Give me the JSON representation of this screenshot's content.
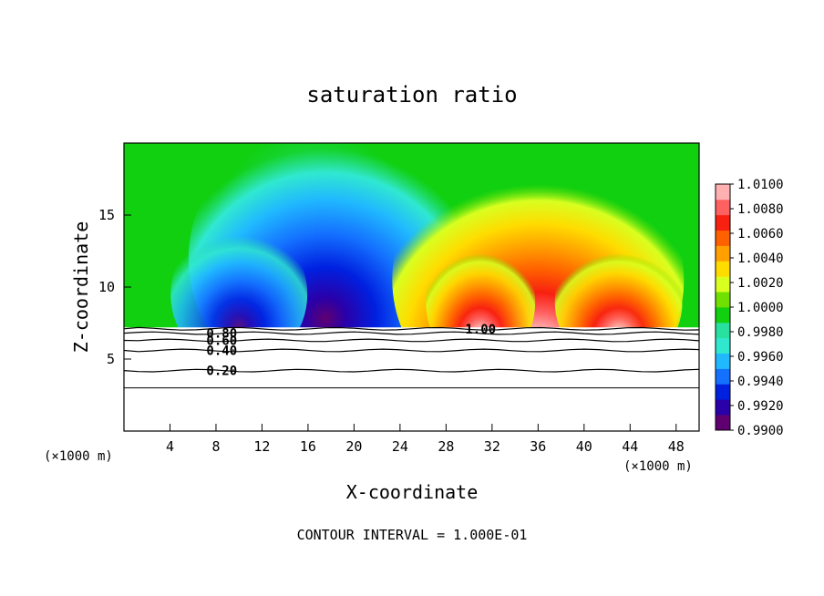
{
  "chart_data": {
    "type": "contour",
    "title": "saturation ratio",
    "xlabel": "X-coordinate",
    "ylabel": "Z-coordinate",
    "x_unit_label": "(×1000 m)",
    "xlim": [
      0,
      50
    ],
    "ylim": [
      0,
      20
    ],
    "x_ticks": [
      "4",
      "8",
      "12",
      "16",
      "20",
      "24",
      "28",
      "32",
      "36",
      "40",
      "44",
      "48"
    ],
    "y_ticks": [
      "5",
      "10",
      "15"
    ],
    "colorbar": {
      "min": 0.99,
      "max": 1.01,
      "labels": [
        "1.0100",
        "1.0080",
        "1.0060",
        "1.0040",
        "1.0020",
        "1.0000",
        "0.9980",
        "0.9960",
        "0.9940",
        "0.9920",
        "0.9900"
      ],
      "colors": [
        "#600070",
        "#2a00a8",
        "#0020e0",
        "#1470ff",
        "#20b8ff",
        "#30e8d0",
        "#28e0a0",
        "#10d010",
        "#70e000",
        "#d8ff20",
        "#ffdc00",
        "#ffa000",
        "#ff6000",
        "#f82010",
        "#ff6060",
        "#ffb0b0"
      ]
    },
    "contour_lines": [
      {
        "value": 0.2,
        "z": 4.2
      },
      {
        "value": 0.4,
        "z": 5.6
      },
      {
        "value": 0.6,
        "z": 6.3
      },
      {
        "value": 0.8,
        "z": 6.8
      },
      {
        "value": 1.0,
        "z": 7.1
      }
    ],
    "contour_labels": [
      "0.20",
      "0.40",
      "0.60",
      "0.80",
      "1.00"
    ],
    "cloud_base_z": 7.2,
    "minimum_region": {
      "x_center": 17.5,
      "z_center": 10.5,
      "value": 0.99
    },
    "maximum_region": {
      "x_center": 36,
      "z_center": 10.5,
      "value": 1.01
    },
    "contour_interval_text": "CONTOUR INTERVAL = 1.000E-01"
  }
}
